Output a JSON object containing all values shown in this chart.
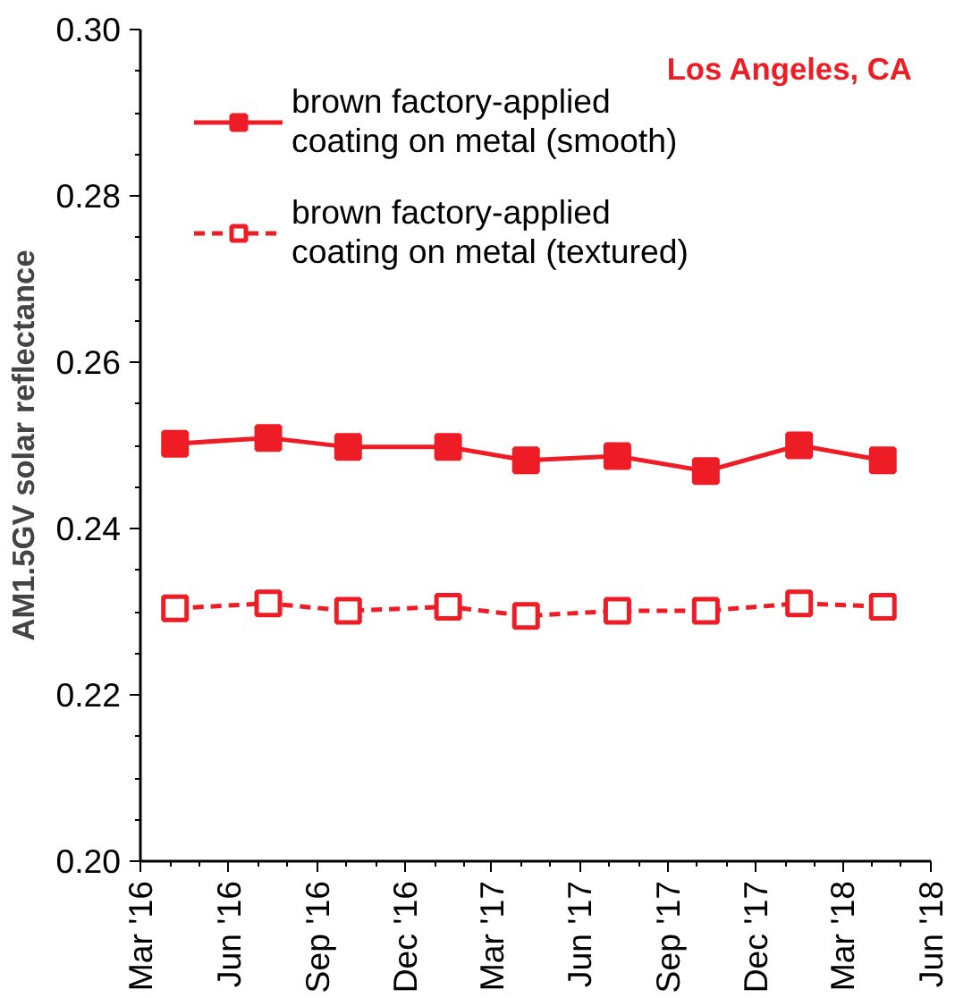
{
  "chart_data": {
    "type": "line",
    "ylabel": "AM1.5GV solar reflectance",
    "annotations": [
      "Los Angeles, CA"
    ],
    "x": [
      "2016-04-06",
      "2016-07-12",
      "2016-10-03",
      "2017-01-15",
      "2017-04-06",
      "2017-07-10",
      "2017-10-10",
      "2018-01-15",
      "2018-04-12"
    ],
    "series": [
      {
        "name": "brown factory-applied\ncoating on metal (smooth)",
        "color": "#ee1c25",
        "marker": "square",
        "line_style": "solid",
        "values": [
          0.2502,
          0.2509,
          0.2498,
          0.2498,
          0.2482,
          0.2487,
          0.2469,
          0.25,
          0.2482
        ]
      },
      {
        "name": "brown factory-applied\ncoating on metal (textured)",
        "color": "#ee1c25",
        "marker": "square",
        "line_style": "dashed",
        "values": [
          0.2304,
          0.231,
          0.2301,
          0.2306,
          0.2295,
          0.2301,
          0.2301,
          0.231,
          0.2306
        ]
      }
    ],
    "xlim": [
      "2016-03",
      "2018-06"
    ],
    "xticks": [
      {
        "value": "2016-03",
        "label": "Mar '16"
      },
      {
        "value": "2016-06",
        "label": "Jun '16"
      },
      {
        "value": "2016-09",
        "label": "Sep '16"
      },
      {
        "value": "2016-12",
        "label": "Dec '16"
      },
      {
        "value": "2017-03",
        "label": "Mar '17"
      },
      {
        "value": "2017-06",
        "label": "Jun '17"
      },
      {
        "value": "2017-09",
        "label": "Sep '17"
      },
      {
        "value": "2017-12",
        "label": "Dec '17"
      },
      {
        "value": "2018-03",
        "label": "Mar '18"
      },
      {
        "value": "2018-06",
        "label": "Jun '18"
      }
    ],
    "ylim": [
      0.2,
      0.3
    ],
    "yticks": [
      {
        "value": 0.2,
        "label": "0.20"
      },
      {
        "value": 0.22,
        "label": "0.22"
      },
      {
        "value": 0.24,
        "label": "0.24"
      },
      {
        "value": 0.26,
        "label": "0.26"
      },
      {
        "value": 0.28,
        "label": "0.28"
      },
      {
        "value": 0.3,
        "label": "0.30"
      }
    ],
    "grid": false,
    "legend": "top left"
  }
}
